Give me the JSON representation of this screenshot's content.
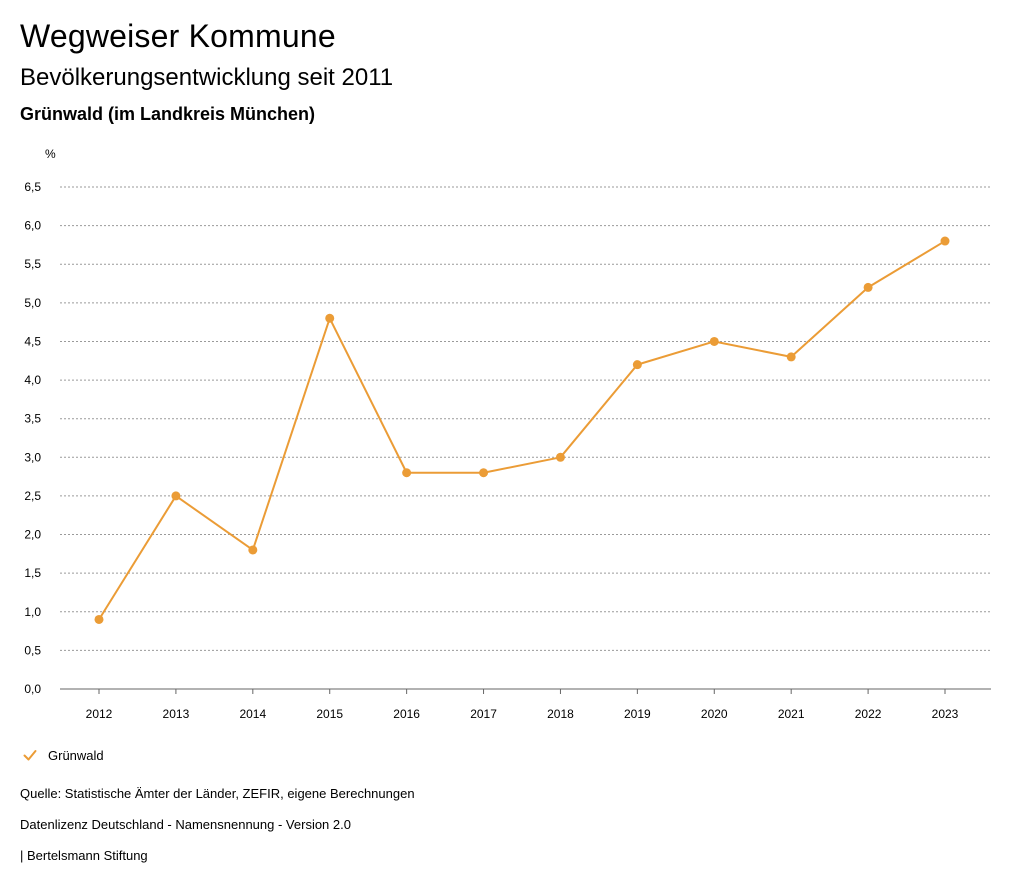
{
  "header": {
    "title": "Wegweiser Kommune",
    "subtitle": "Bevölkerungsentwicklung seit 2011",
    "region": "Grünwald (im Landkreis München)"
  },
  "chart_data": {
    "type": "line",
    "title": "Bevölkerungsentwicklung seit 2011",
    "xlabel": "",
    "ylabel": "%",
    "categories": [
      "2012",
      "2013",
      "2014",
      "2015",
      "2016",
      "2017",
      "2018",
      "2019",
      "2020",
      "2021",
      "2022",
      "2023"
    ],
    "series": [
      {
        "name": "Grünwald",
        "color": "#EB9C36",
        "values": [
          0.9,
          2.5,
          1.8,
          4.8,
          2.8,
          2.8,
          3.0,
          4.2,
          4.5,
          4.3,
          5.2,
          5.8
        ]
      }
    ],
    "ylim": [
      0,
      6.5
    ],
    "yticks": [
      0,
      0.5,
      1.0,
      1.5,
      2.0,
      2.5,
      3.0,
      3.5,
      4.0,
      4.5,
      5.0,
      5.5,
      6.0,
      6.5
    ],
    "ytick_labels": [
      "0,0",
      "0,5",
      "1,0",
      "1,5",
      "2,0",
      "2,5",
      "3,0",
      "3,5",
      "4,0",
      "4,5",
      "5,0",
      "5,5",
      "6,0",
      "6,5"
    ],
    "grid": true,
    "legend_position": "bottom-left"
  },
  "legend": {
    "label": "Grünwald",
    "icon": "check-icon",
    "color": "#EB9C36"
  },
  "footer": {
    "source": "Quelle: Statistische Ämter der Länder, ZEFIR, eigene Berechnungen",
    "license": "Datenlizenz Deutschland - Namensnennung - Version 2.0",
    "publisher": "| Bertelsmann Stiftung"
  }
}
